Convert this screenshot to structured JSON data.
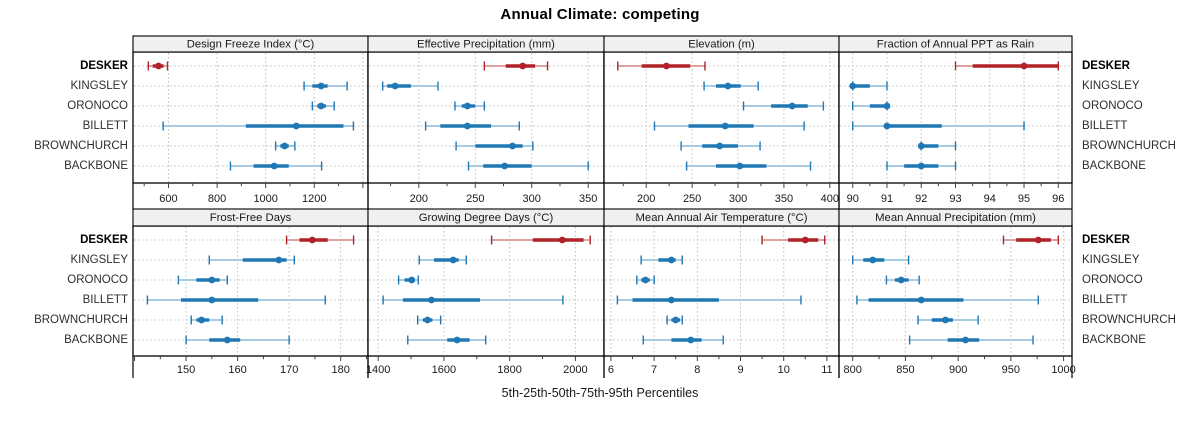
{
  "title": "Annual Climate: competing",
  "caption": "5th-25th-50th-75th-95th Percentiles",
  "sites": [
    "DESKER",
    "KINGSLEY",
    "ORONOCO",
    "BILLETT",
    "BROWNCHURCH",
    "BACKBONE"
  ],
  "highlight_site": "DESKER",
  "colors": {
    "highlight": "#b02227",
    "highlight_light": "#dca2a2",
    "normal": "#1f78b4",
    "normal_light": "#a6cbe3",
    "panel_header_bg": "#f0f0f0",
    "panel_border": "#000000",
    "grid": "#bdbdbd",
    "tick": "#404040",
    "text": "#1a1a1a"
  },
  "chart_data": {
    "type": "scatter",
    "subtype": "percentile-interval-dotplot",
    "percentiles": [
      5,
      25,
      50,
      75,
      95
    ],
    "categories": [
      "DESKER",
      "KINGSLEY",
      "ORONOCO",
      "BILLETT",
      "BROWNCHURCH",
      "BACKBONE"
    ],
    "legend_position": "none",
    "grid": "dotted",
    "layout": "4x2 trellis, free x scales, shared category rows",
    "panels": [
      {
        "title": "Design Freeze Index (°C)",
        "panel_row": 0,
        "panel_col": 0,
        "xlim": [
          454,
          1421
        ],
        "ticks": [
          600,
          800,
          1000,
          1200
        ],
        "series": [
          {
            "site": "DESKER",
            "values": [
              517,
              535,
              559,
              580,
              596
            ]
          },
          {
            "site": "KINGSLEY",
            "values": [
              1158,
              1192,
              1228,
              1255,
              1335
            ]
          },
          {
            "site": "ORONOCO",
            "values": [
              1192,
              1212,
              1228,
              1248,
              1282
            ]
          },
          {
            "site": "BILLETT",
            "values": [
              578,
              918,
              1126,
              1320,
              1361
            ]
          },
          {
            "site": "BROWNCHURCH",
            "values": [
              1041,
              1060,
              1078,
              1095,
              1120
            ]
          },
          {
            "site": "BACKBONE",
            "values": [
              855,
              950,
              1035,
              1095,
              1230
            ]
          }
        ]
      },
      {
        "title": "Effective Precipitation (mm)",
        "panel_row": 0,
        "panel_col": 1,
        "xlim": [
          155,
          364
        ],
        "ticks": [
          200,
          250,
          300,
          350
        ],
        "series": [
          {
            "site": "DESKER",
            "values": [
              258,
              277,
              292,
              303,
              314
            ]
          },
          {
            "site": "KINGSLEY",
            "values": [
              168,
              172,
              179,
              193,
              217
            ]
          },
          {
            "site": "ORONOCO",
            "values": [
              232,
              238,
              243,
              250,
              258
            ]
          },
          {
            "site": "BILLETT",
            "values": [
              206,
              219,
              243,
              264,
              289
            ]
          },
          {
            "site": "BROWNCHURCH",
            "values": [
              233,
              250,
              283,
              292,
              301
            ]
          },
          {
            "site": "BACKBONE",
            "values": [
              244,
              257,
              276,
              300,
              350
            ]
          }
        ]
      },
      {
        "title": "Elevation (m)",
        "panel_row": 0,
        "panel_col": 2,
        "xlim": [
          154,
          410
        ],
        "ticks": [
          200,
          250,
          300,
          350,
          400
        ],
        "series": [
          {
            "site": "DESKER",
            "values": [
              169,
              195,
              222,
              248,
              264
            ]
          },
          {
            "site": "KINGSLEY",
            "values": [
              263,
              276,
              289,
              303,
              322
            ]
          },
          {
            "site": "ORONOCO",
            "values": [
              306,
              336,
              359,
              376,
              393
            ]
          },
          {
            "site": "BILLETT",
            "values": [
              209,
              246,
              286,
              317,
              372
            ]
          },
          {
            "site": "BROWNCHURCH",
            "values": [
              238,
              261,
              280,
              300,
              324
            ]
          },
          {
            "site": "BACKBONE",
            "values": [
              244,
              276,
              302,
              331,
              379
            ]
          }
        ]
      },
      {
        "title": "Fraction of Annual PPT as Rain",
        "panel_row": 0,
        "panel_col": 3,
        "xlim": [
          89.6,
          96.4
        ],
        "ticks": [
          90,
          91,
          92,
          93,
          94,
          95,
          96
        ],
        "series": [
          {
            "site": "DESKER",
            "values": [
              93,
              93.5,
              95,
              96,
              96
            ]
          },
          {
            "site": "KINGSLEY",
            "values": [
              90,
              90,
              90,
              90.5,
              91
            ]
          },
          {
            "site": "ORONOCO",
            "values": [
              90,
              90.5,
              91,
              91,
              91
            ]
          },
          {
            "site": "BILLETT",
            "values": [
              90,
              91,
              91,
              92.6,
              95
            ]
          },
          {
            "site": "BROWNCHURCH",
            "values": [
              92,
              92,
              92,
              92.5,
              93
            ]
          },
          {
            "site": "BACKBONE",
            "values": [
              91,
              91.5,
              92,
              92.5,
              93
            ]
          }
        ]
      },
      {
        "title": "Frost-Free Days",
        "panel_row": 1,
        "panel_col": 0,
        "xlim": [
          139.7,
          185.3
        ],
        "ticks": [
          150,
          160,
          170,
          180
        ],
        "series": [
          {
            "site": "DESKER",
            "values": [
              169.5,
              172,
              174.5,
              177.5,
              182.5
            ]
          },
          {
            "site": "KINGSLEY",
            "values": [
              154.5,
              161,
              168,
              169.5,
              171
            ]
          },
          {
            "site": "ORONOCO",
            "values": [
              148.5,
              152,
              155,
              156.5,
              158
            ]
          },
          {
            "site": "BILLETT",
            "values": [
              142.5,
              149,
              155,
              164,
              177
            ]
          },
          {
            "site": "BROWNCHURCH",
            "values": [
              151,
              152,
              153,
              154.5,
              157
            ]
          },
          {
            "site": "BACKBONE",
            "values": [
              150,
              154.5,
              158,
              160.5,
              170
            ]
          }
        ]
      },
      {
        "title": "Growing Degree Days (°C)",
        "panel_row": 1,
        "panel_col": 1,
        "xlim": [
          1369,
          2087
        ],
        "ticks": [
          1400,
          1600,
          1800,
          2000
        ],
        "series": [
          {
            "site": "DESKER",
            "values": [
              1745,
              1870,
              1960,
              2025,
              2045
            ]
          },
          {
            "site": "KINGSLEY",
            "values": [
              1525,
              1570,
              1628,
              1645,
              1668
            ]
          },
          {
            "site": "ORONOCO",
            "values": [
              1462,
              1480,
              1502,
              1512,
              1522
            ]
          },
          {
            "site": "BILLETT",
            "values": [
              1415,
              1475,
              1562,
              1710,
              1962
            ]
          },
          {
            "site": "BROWNCHURCH",
            "values": [
              1520,
              1536,
              1550,
              1565,
              1590
            ]
          },
          {
            "site": "BACKBONE",
            "values": [
              1490,
              1610,
              1640,
              1678,
              1727
            ]
          }
        ]
      },
      {
        "title": "Mean Annual Air Temperature (°C)",
        "panel_row": 1,
        "panel_col": 2,
        "xlim": [
          5.84,
          11.28
        ],
        "ticks": [
          6,
          7,
          8,
          9,
          10,
          11
        ],
        "series": [
          {
            "site": "DESKER",
            "values": [
              9.5,
              10.1,
              10.5,
              10.8,
              10.95
            ]
          },
          {
            "site": "KINGSLEY",
            "values": [
              6.7,
              7.1,
              7.4,
              7.5,
              7.65
            ]
          },
          {
            "site": "ORONOCO",
            "values": [
              6.6,
              6.7,
              6.8,
              6.9,
              7.0
            ]
          },
          {
            "site": "BILLETT",
            "values": [
              6.15,
              6.5,
              7.4,
              8.5,
              10.4
            ]
          },
          {
            "site": "BROWNCHURCH",
            "values": [
              7.3,
              7.4,
              7.5,
              7.6,
              7.65
            ]
          },
          {
            "site": "BACKBONE",
            "values": [
              6.75,
              7.4,
              7.85,
              8.1,
              8.6
            ]
          }
        ]
      },
      {
        "title": "Mean Annual Precipitation (mm)",
        "panel_row": 1,
        "panel_col": 3,
        "xlim": [
          787,
          1008
        ],
        "ticks": [
          800,
          850,
          900,
          950,
          1000
        ],
        "series": [
          {
            "site": "DESKER",
            "values": [
              943,
              955,
              976,
              988,
              995
            ]
          },
          {
            "site": "KINGSLEY",
            "values": [
              800,
              810,
              819,
              830,
              853
            ]
          },
          {
            "site": "ORONOCO",
            "values": [
              832,
              840,
              846,
              853,
              863
            ]
          },
          {
            "site": "BILLETT",
            "values": [
              804,
              815,
              865,
              905,
              976
            ]
          },
          {
            "site": "BROWNCHURCH",
            "values": [
              862,
              875,
              888,
              895,
              919
            ]
          },
          {
            "site": "BACKBONE",
            "values": [
              854,
              890,
              907,
              920,
              971
            ]
          }
        ]
      }
    ]
  }
}
